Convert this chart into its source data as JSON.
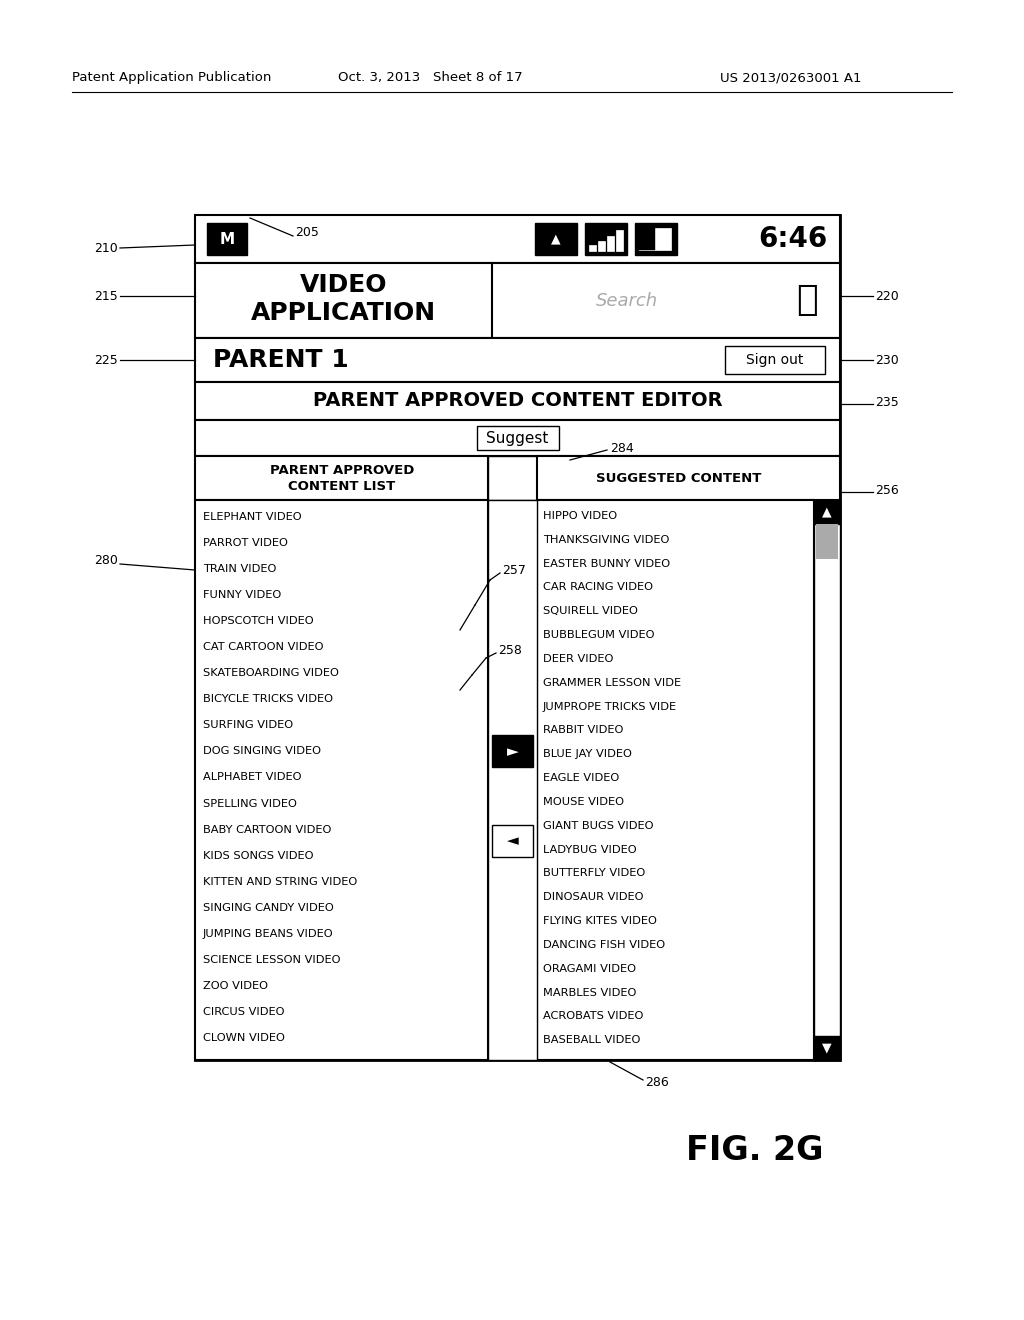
{
  "patent_header_left": "Patent Application Publication",
  "patent_header_mid": "Oct. 3, 2013   Sheet 8 of 17",
  "patent_header_right": "US 2013/0263001 A1",
  "fig_label": "FIG. 2G",
  "time_display": "6:46",
  "app_title_line1": "VIDEO",
  "app_title_line2": "APPLICATION",
  "search_placeholder": "Search",
  "user_name": "PARENT 1",
  "signout_label": "Sign out",
  "editor_title": "PARENT APPROVED CONTENT EDITOR",
  "suggest_label": "Suggest",
  "left_col_header1": "PARENT APPROVED",
  "left_col_header2": "CONTENT LIST",
  "right_col_header": "SUGGESTED CONTENT",
  "left_items": [
    "ELEPHANT VIDEO",
    "PARROT VIDEO",
    "TRAIN VIDEO",
    "FUNNY VIDEO",
    "HOPSCOTCH VIDEO",
    "CAT CARTOON VIDEO",
    "SKATEBOARDING VIDEO",
    "BICYCLE TRICKS VIDEO",
    "SURFING VIDEO",
    "DOG SINGING VIDEO",
    "ALPHABET VIDEO",
    "SPELLING VIDEO",
    "BABY CARTOON VIDEO",
    "KIDS SONGS VIDEO",
    "KITTEN AND STRING VIDEO",
    "SINGING CANDY VIDEO",
    "JUMPING BEANS VIDEO",
    "SCIENCE LESSON VIDEO",
    "ZOO VIDEO",
    "CIRCUS VIDEO",
    "CLOWN VIDEO"
  ],
  "right_items": [
    "HIPPO VIDEO",
    "THANKSGIVING VIDEO",
    "EASTER BUNNY VIDEO",
    "CAR RACING VIDEO",
    "SQUIRELL VIDEO",
    "BUBBLEGUM VIDEO",
    "DEER VIDEO",
    "GRAMMER LESSON VIDE⁠",
    "JUMPROPE TRICKS VIDE⁠",
    "RABBIT VIDEO",
    "BLUE JAY VIDEO",
    "EAGLE VIDEO",
    "MOUSE VIDEO",
    "GIANT BUGS VIDEO",
    "LADYBUG VIDEO",
    "BUTTERFLY VIDEO",
    "DINOSAUR VIDEO",
    "FLYING KITES VIDEO",
    "DANCING FISH VIDEO",
    "ORAGAMI VIDEO",
    "MARBLES VIDEO",
    "ACROBATS VIDEO",
    "BASEBALL VIDEO"
  ],
  "bg_color": "#ffffff"
}
